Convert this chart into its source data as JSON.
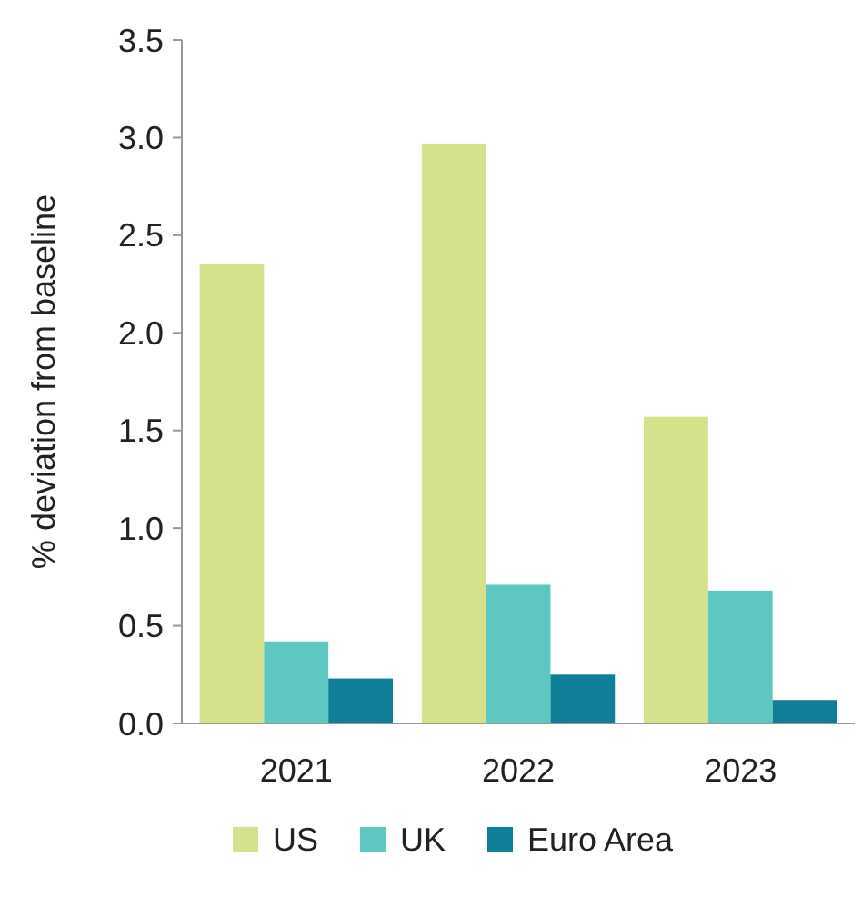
{
  "chart_data": {
    "type": "bar",
    "ylabel": "% deviation from baseline",
    "categories": [
      "2021",
      "2022",
      "2023"
    ],
    "series": [
      {
        "name": "US",
        "color": "#d5e28b",
        "values": [
          2.35,
          2.97,
          1.57
        ]
      },
      {
        "name": "UK",
        "color": "#5ec7c2",
        "values": [
          0.42,
          0.71,
          0.68
        ]
      },
      {
        "name": "Euro Area",
        "color": "#0f7f98",
        "values": [
          0.23,
          0.25,
          0.12
        ]
      }
    ],
    "ylim": [
      0,
      3.5
    ],
    "yticks": [
      {
        "value": 0,
        "label": "0.0"
      },
      {
        "value": 0.5,
        "label": "0.5"
      },
      {
        "value": 1,
        "label": "1.0"
      },
      {
        "value": 1.5,
        "label": "1.5"
      },
      {
        "value": 2,
        "label": "2.0"
      },
      {
        "value": 2.5,
        "label": "2.5"
      },
      {
        "value": 3,
        "label": "3.0"
      },
      {
        "value": 3.5,
        "label": "3.5"
      }
    ],
    "grid": false,
    "legend": "bottom"
  }
}
